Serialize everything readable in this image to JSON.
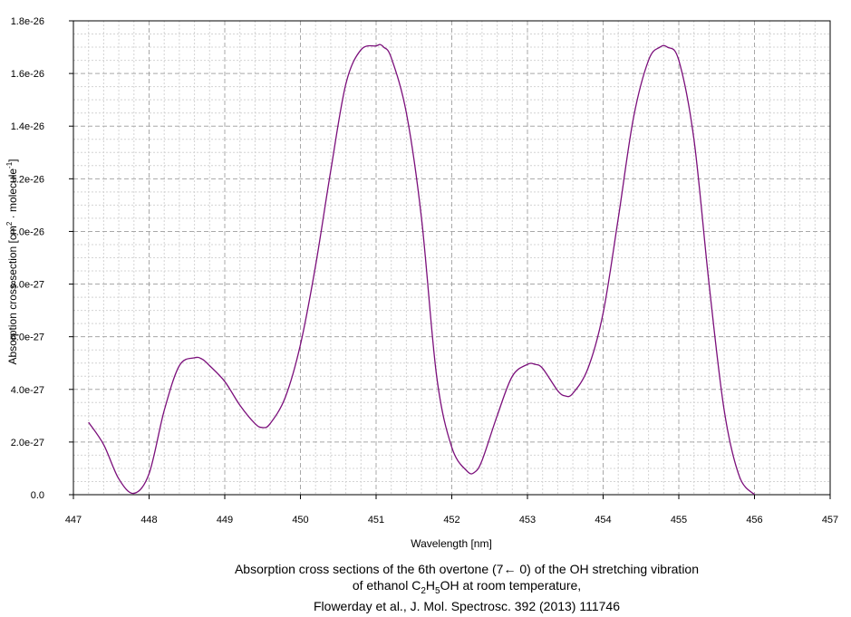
{
  "chart_data": {
    "type": "line",
    "xlabel": "Wavelength [nm]",
    "ylabel": "Absorption cross section [cm",
    "ylabel_sup1": "2",
    "ylabel_mid": " · molecule",
    "ylabel_sup2": "-1",
    "ylabel_end": "]",
    "xlim": [
      447,
      457
    ],
    "ylim": [
      0,
      1.8e-26
    ],
    "x_ticks": [
      "447",
      "448",
      "449",
      "450",
      "451",
      "452",
      "453",
      "454",
      "455",
      "456",
      "457"
    ],
    "y_ticks": [
      "0.0",
      "2.0e-27",
      "4.0e-27",
      "6.0e-27",
      "8.0e-27",
      "1.0e-26",
      "1.2e-26",
      "1.4e-26",
      "1.6e-26",
      "1.8e-26"
    ],
    "grid": true,
    "line_color": "#7b0f7b",
    "series": [
      {
        "x": [
          447.2,
          447.4,
          447.6,
          447.8,
          448.0,
          448.2,
          448.4,
          448.6,
          448.7,
          448.8,
          449.0,
          449.2,
          449.4,
          449.5,
          449.6,
          449.8,
          450.0,
          450.2,
          450.4,
          450.6,
          450.8,
          451.0,
          451.05,
          451.1,
          451.2,
          451.4,
          451.6,
          451.8,
          452.0,
          452.2,
          452.3,
          452.4,
          452.6,
          452.8,
          453.0,
          453.1,
          453.2,
          453.4,
          453.5,
          453.6,
          453.8,
          454.0,
          454.2,
          454.4,
          454.6,
          454.75,
          454.85,
          455.0,
          455.2,
          455.4,
          455.6,
          455.8,
          456.0
        ],
        "y": [
          2.75e-27,
          1.9e-27,
          6e-28,
          5e-29,
          8e-28,
          3.2e-27,
          4.9e-27,
          5.2e-27,
          5.15e-27,
          4.9e-27,
          4.3e-27,
          3.4e-27,
          2.7e-27,
          2.55e-27,
          2.7e-27,
          3.7e-27,
          5.7e-27,
          8.7e-27,
          1.23e-26,
          1.56e-26,
          1.69e-26,
          1.705e-26,
          1.71e-26,
          1.7e-26,
          1.66e-26,
          1.45e-26,
          1.05e-26,
          4.5e-27,
          1.8e-27,
          9e-28,
          8.5e-28,
          1.3e-27,
          3e-27,
          4.5e-27,
          4.95e-27,
          4.95e-27,
          4.8e-27,
          3.95e-27,
          3.75e-27,
          3.85e-27,
          4.8e-27,
          6.9e-27,
          1.05e-26,
          1.43e-26,
          1.65e-26,
          1.7e-26,
          1.7e-26,
          1.65e-26,
          1.35e-26,
          8e-27,
          3.2e-27,
          7e-28,
          0.0
        ]
      }
    ]
  },
  "caption": {
    "line1": "Absorption cross sections of the 6th overtone (7← 0) of the OH stretching vibration",
    "line2_pre": "of ethanol C",
    "line2_sub1": "2",
    "line2_mid": "H",
    "line2_sub2": "5",
    "line2_post": "OH at room temperature,",
    "line3": "Flowerday et al., J. Mol. Spectrosc. 392 (2013) 111746"
  }
}
